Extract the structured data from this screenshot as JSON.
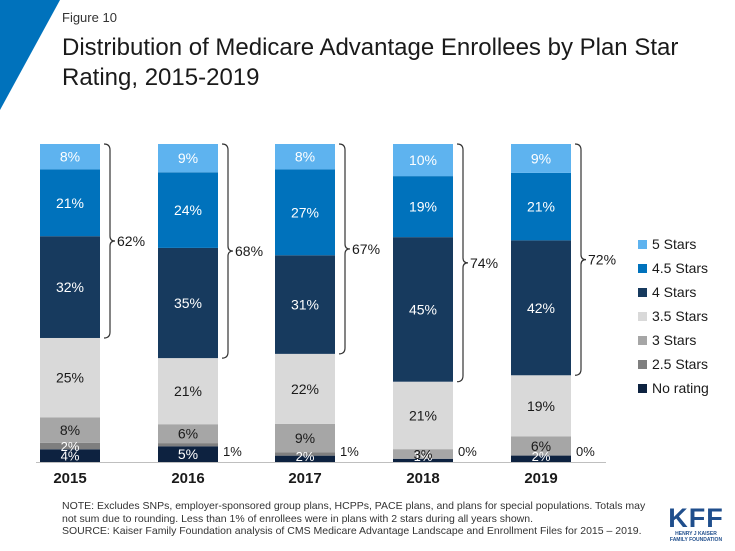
{
  "figure_label": "Figure 10",
  "title": "Distribution of Medicare Advantage Enrollees by Plan Star Rating, 2015-2019",
  "chart_data": {
    "type": "bar",
    "stacked": true,
    "categories": [
      "2015",
      "2016",
      "2017",
      "2018",
      "2019"
    ],
    "series": [
      {
        "name": "No rating",
        "color": "#0d2240",
        "values": [
          4,
          5,
          2,
          1,
          2
        ],
        "labels": [
          "4%",
          "5%",
          "2%",
          "1%",
          "2%"
        ]
      },
      {
        "name": "2.5 Stars",
        "color": "#7f7f7f",
        "values": [
          2,
          1,
          1,
          0,
          0
        ],
        "labels": [
          "2%",
          "1%",
          "1%",
          "0%",
          "0%"
        ]
      },
      {
        "name": "3 Stars",
        "color": "#a6a6a6",
        "values": [
          8,
          6,
          9,
          3,
          6
        ],
        "labels": [
          "8%",
          "6%",
          "9%",
          "3%",
          "6%"
        ]
      },
      {
        "name": "3.5 Stars",
        "color": "#d9d9d9",
        "values": [
          25,
          21,
          22,
          21,
          19
        ],
        "labels": [
          "25%",
          "21%",
          "22%",
          "21%",
          "19%"
        ]
      },
      {
        "name": "4 Stars",
        "color": "#173a5e",
        "values": [
          32,
          35,
          31,
          45,
          42
        ],
        "labels": [
          "32%",
          "35%",
          "31%",
          "45%",
          "42%"
        ]
      },
      {
        "name": "4.5 Stars",
        "color": "#0072bc",
        "values": [
          21,
          24,
          27,
          19,
          21
        ],
        "labels": [
          "21%",
          "24%",
          "27%",
          "19%",
          "21%"
        ]
      },
      {
        "name": "5 Stars",
        "color": "#5eb3ef",
        "values": [
          8,
          9,
          8,
          10,
          9
        ],
        "labels": [
          "8%",
          "9%",
          "8%",
          "10%",
          "9%"
        ]
      }
    ],
    "four_plus_totals": [
      "62%",
      "68%",
      "67%",
      "74%",
      "72%"
    ],
    "outside_labels": [
      "",
      "1%",
      "1%",
      "0%",
      "0%"
    ],
    "ylim": [
      0,
      100
    ],
    "legend_position": "right"
  },
  "legend": [
    {
      "label": "5 Stars",
      "color": "#5eb3ef"
    },
    {
      "label": "4.5 Stars",
      "color": "#0072bc"
    },
    {
      "label": "4 Stars",
      "color": "#173a5e"
    },
    {
      "label": "3.5 Stars",
      "color": "#d9d9d9"
    },
    {
      "label": "3 Stars",
      "color": "#a6a6a6"
    },
    {
      "label": "2.5 Stars",
      "color": "#7f7f7f"
    },
    {
      "label": "No rating",
      "color": "#0d2240"
    }
  ],
  "notes": {
    "note": "NOTE: Excludes SNPs, employer-sponsored group plans, HCPPs, PACE plans, and plans for special populations. Totals may not sum due to rounding. Less than 1% of enrollees were in plans with 2 stars during all years shown.",
    "source": "SOURCE: Kaiser Family Foundation analysis of CMS Medicare Advantage Landscape and Enrollment Files for 2015 – 2019."
  },
  "logo": {
    "mark": "KFF",
    "sub1": "HENRY J KAISER",
    "sub2": "FAMILY FOUNDATION"
  }
}
